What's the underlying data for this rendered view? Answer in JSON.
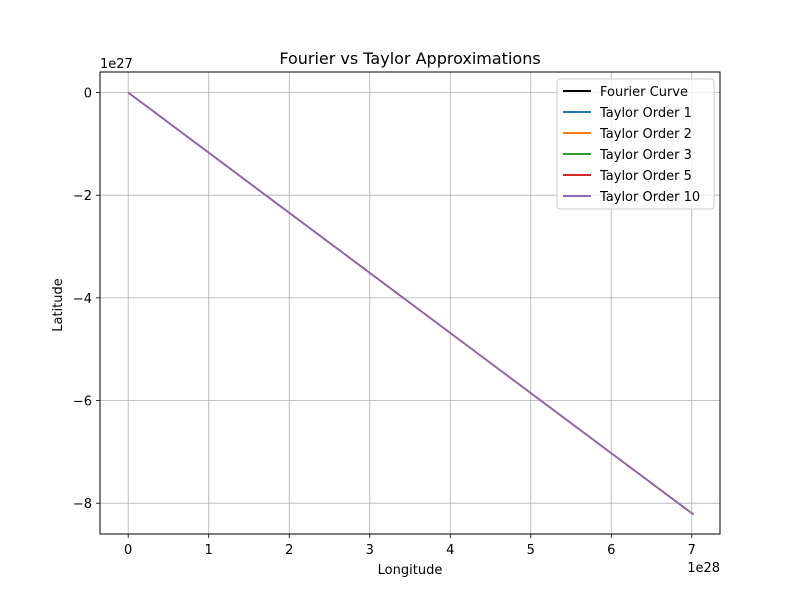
{
  "chart_data": {
    "type": "line",
    "title": "Fourier vs Taylor Approximations",
    "xlabel": "Longitude",
    "ylabel": "Latitude",
    "x_offset_label": "1e28",
    "y_offset_label": "1e27",
    "x_scale": 1e+28,
    "y_scale": 1e+27,
    "xlim": [
      -0.35,
      7.35
    ],
    "ylim": [
      -8.6,
      0.4
    ],
    "x_ticks": [
      0,
      1,
      2,
      3,
      4,
      5,
      6,
      7
    ],
    "x_tick_labels": [
      "0",
      "1",
      "2",
      "3",
      "4",
      "5",
      "6",
      "7"
    ],
    "y_ticks": [
      0,
      -2,
      -4,
      -6,
      -8
    ],
    "y_tick_labels": [
      "0",
      "−2",
      "−4",
      "−6",
      "−8"
    ],
    "grid": true,
    "legend_position": "top-right",
    "series": [
      {
        "name": "Fourier Curve",
        "color": "#000000",
        "x": [
          0,
          7.02
        ],
        "y": [
          0,
          -8.22
        ]
      },
      {
        "name": "Taylor Order 1",
        "color": "#1f77b4",
        "x": [
          0,
          7.02
        ],
        "y": [
          0,
          -8.22
        ]
      },
      {
        "name": "Taylor Order 2",
        "color": "#ff7f0e",
        "x": [
          0,
          7.02
        ],
        "y": [
          0,
          -8.22
        ]
      },
      {
        "name": "Taylor Order 3",
        "color": "#2ca02c",
        "x": [
          0,
          7.02
        ],
        "y": [
          0,
          -8.22
        ]
      },
      {
        "name": "Taylor Order 5",
        "color": "#d62728",
        "x": [
          0,
          7.02
        ],
        "y": [
          0,
          -8.22
        ]
      },
      {
        "name": "Taylor Order 10",
        "color": "#9467bd",
        "x": [
          0,
          7.02
        ],
        "y": [
          0,
          -8.22
        ]
      }
    ]
  }
}
